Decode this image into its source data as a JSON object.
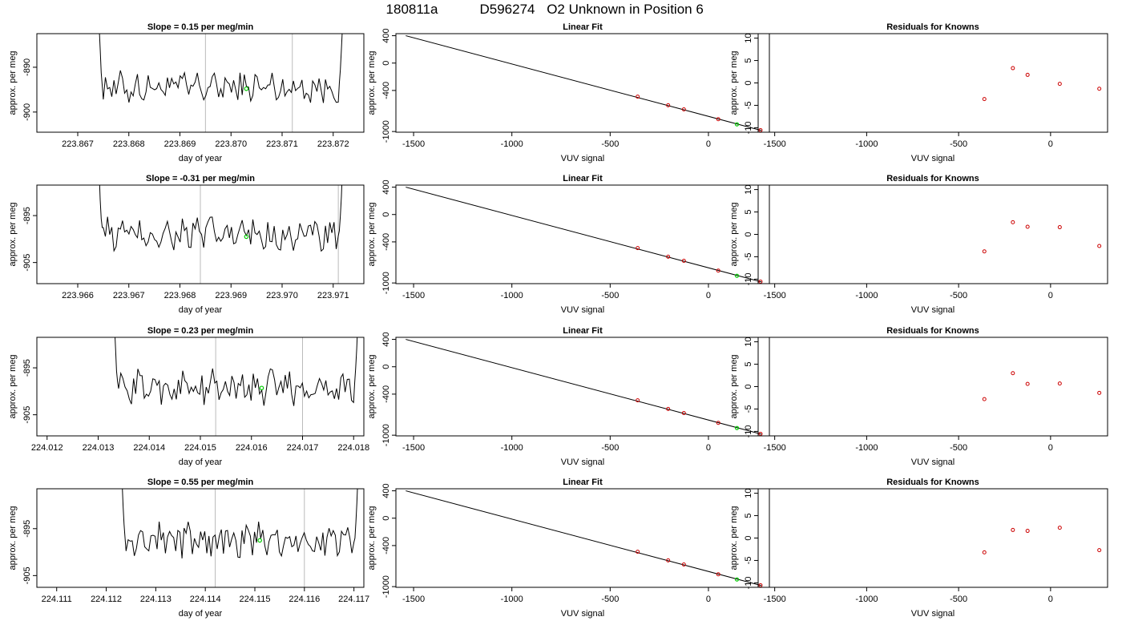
{
  "header": {
    "run_id": "180811a",
    "sample_id": "D596274",
    "description": "O2 Unknown in Position  6"
  },
  "colors": {
    "trace": "#000000",
    "known_point": "#cc0000",
    "unknown_point": "#00cc00",
    "vline": "#bbbbbb",
    "axis": "#000000"
  },
  "chart_data": [
    {
      "type": "line",
      "panel": "time-trace",
      "row": 1,
      "title": "Slope =  0.15  per meg/min",
      "xlabel": "day of year",
      "ylabel": "approx. per meg",
      "xlim": [
        223.8662,
        223.8726
      ],
      "ylim": [
        -904.5,
        -882.5
      ],
      "y_reversed": true,
      "xticks": [
        223.867,
        223.868,
        223.869,
        223.87,
        223.871,
        223.872
      ],
      "xtick_labels": [
        "223.867",
        "223.868",
        "223.869",
        "223.870",
        "223.871",
        "223.872"
      ],
      "yticks": [
        -890,
        -900
      ],
      "ytick_labels": [
        "-890",
        "-900"
      ],
      "vlines": [
        223.8695,
        223.8712
      ],
      "baseline": -894.5,
      "span": [
        223.8675,
        223.8721
      ],
      "segments": 110,
      "highlight_point": {
        "x": 223.8703,
        "y": -894.8
      }
    },
    {
      "type": "scatter",
      "panel": "linear-fit",
      "row": 1,
      "title": "Linear Fit",
      "xlabel": "VUV signal",
      "ylabel": "approx. per meg",
      "xlim": [
        -1590,
        310
      ],
      "ylim": [
        -1010,
        430
      ],
      "xticks": [
        -1500,
        -1000,
        -500,
        0
      ],
      "xtick_labels": [
        "-1500",
        "-1000",
        "-500",
        "0"
      ],
      "yticks": [
        400,
        0,
        -400,
        -1000
      ],
      "ytick_labels": [
        "400",
        "0",
        "-400",
        "-1000"
      ],
      "fit_line": {
        "x": [
          -1540,
          270
        ],
        "y": [
          400,
          -985
        ]
      },
      "knowns": {
        "x": [
          -360,
          -205,
          -125,
          50,
          265
        ],
        "y": [
          -490,
          -616,
          -676,
          -820,
          -980
        ]
      },
      "unknown": {
        "x": 145,
        "y": -895
      }
    },
    {
      "type": "scatter",
      "panel": "residuals",
      "row": 1,
      "title": "Residuals for Knowns",
      "xlabel": "VUV signal",
      "ylabel": "approx. per meg",
      "xlim": [
        -1590,
        310
      ],
      "ylim": [
        -11,
        11
      ],
      "xticks": [
        -1500,
        -1000,
        -500,
        0
      ],
      "xtick_labels": [
        "-1500",
        "-1000",
        "-500",
        "0"
      ],
      "yticks": [
        10,
        5,
        0,
        -5,
        -10
      ],
      "ytick_labels": [
        "10",
        "5",
        "0",
        "-5",
        "-10"
      ],
      "residuals": {
        "x": [
          -360,
          -205,
          -125,
          50,
          265
        ],
        "y": [
          -3.6,
          3.3,
          1.8,
          -0.2,
          -1.3
        ]
      }
    },
    {
      "type": "line",
      "panel": "time-trace",
      "row": 2,
      "title": "Slope =  -0.31  per meg/min",
      "xlabel": "day of year",
      "ylabel": "approx. per meg",
      "xlim": [
        223.9652,
        223.9716
      ],
      "ylim": [
        -909.5,
        -888.5
      ],
      "y_reversed": true,
      "xticks": [
        223.966,
        223.967,
        223.968,
        223.969,
        223.97,
        223.971
      ],
      "xtick_labels": [
        "223.966",
        "223.967",
        "223.968",
        "223.969",
        "223.970",
        "223.971"
      ],
      "yticks": [
        -895,
        -905
      ],
      "ytick_labels": [
        "-895",
        "-905"
      ],
      "vlines": [
        223.9684,
        223.9711
      ],
      "baseline": -899.0,
      "span": [
        223.9665,
        223.9711
      ],
      "segments": 110,
      "highlight_point": {
        "x": 223.9693,
        "y": -899.5
      }
    },
    {
      "type": "scatter",
      "panel": "linear-fit",
      "row": 2,
      "title": "Linear Fit",
      "xlabel": "VUV signal",
      "ylabel": "approx. per meg",
      "xlim": [
        -1590,
        310
      ],
      "ylim": [
        -1010,
        430
      ],
      "xticks": [
        -1500,
        -1000,
        -500,
        0
      ],
      "xtick_labels": [
        "-1500",
        "-1000",
        "-500",
        "0"
      ],
      "yticks": [
        400,
        0,
        -400,
        -1000
      ],
      "ytick_labels": [
        "400",
        "0",
        "-400",
        "-1000"
      ],
      "fit_line": {
        "x": [
          -1540,
          270
        ],
        "y": [
          400,
          -985
        ]
      },
      "knowns": {
        "x": [
          -360,
          -205,
          -125,
          50,
          265
        ],
        "y": [
          -490,
          -616,
          -676,
          -820,
          -980
        ]
      },
      "unknown": {
        "x": 145,
        "y": -895
      }
    },
    {
      "type": "scatter",
      "panel": "residuals",
      "row": 2,
      "title": "Residuals for Knowns",
      "xlabel": "VUV signal",
      "ylabel": "approx. per meg",
      "xlim": [
        -1590,
        310
      ],
      "ylim": [
        -11,
        11
      ],
      "xticks": [
        -1500,
        -1000,
        -500,
        0
      ],
      "xtick_labels": [
        "-1500",
        "-1000",
        "-500",
        "0"
      ],
      "yticks": [
        10,
        5,
        0,
        -5,
        -10
      ],
      "ytick_labels": [
        "10",
        "5",
        "0",
        "-5",
        "-10"
      ],
      "residuals": {
        "x": [
          -360,
          -205,
          -125,
          50,
          265
        ],
        "y": [
          -3.8,
          2.7,
          1.7,
          1.6,
          -2.6
        ]
      }
    },
    {
      "type": "line",
      "panel": "time-trace",
      "row": 3,
      "title": "Slope =  0.23  per meg/min",
      "xlabel": "day of year",
      "ylabel": "approx. per meg",
      "xlim": [
        224.0118,
        224.0182
      ],
      "ylim": [
        -909.5,
        -888.5
      ],
      "y_reversed": true,
      "xticks": [
        224.012,
        224.013,
        224.014,
        224.015,
        224.016,
        224.017,
        224.018
      ],
      "xtick_labels": [
        "224.012",
        "224.013",
        "224.014",
        "224.015",
        "224.016",
        "224.017",
        "224.018"
      ],
      "yticks": [
        -895,
        -905
      ],
      "ytick_labels": [
        "-895",
        "-905"
      ],
      "vlines": [
        224.0153,
        224.017
      ],
      "baseline": -899.0,
      "span": [
        224.0134,
        224.018
      ],
      "segments": 110,
      "highlight_point": {
        "x": 224.0162,
        "y": -899.3
      }
    },
    {
      "type": "scatter",
      "panel": "linear-fit",
      "row": 3,
      "title": "Linear Fit",
      "xlabel": "VUV signal",
      "ylabel": "approx. per meg",
      "xlim": [
        -1590,
        310
      ],
      "ylim": [
        -1010,
        430
      ],
      "xticks": [
        -1500,
        -1000,
        -500,
        0
      ],
      "xtick_labels": [
        "-1500",
        "-1000",
        "-500",
        "0"
      ],
      "yticks": [
        400,
        0,
        -400,
        -1000
      ],
      "ytick_labels": [
        "400",
        "0",
        "-400",
        "-1000"
      ],
      "fit_line": {
        "x": [
          -1540,
          270
        ],
        "y": [
          400,
          -985
        ]
      },
      "knowns": {
        "x": [
          -360,
          -205,
          -125,
          50,
          265
        ],
        "y": [
          -490,
          -616,
          -676,
          -820,
          -980
        ]
      },
      "unknown": {
        "x": 145,
        "y": -895
      }
    },
    {
      "type": "scatter",
      "panel": "residuals",
      "row": 3,
      "title": "Residuals for Knowns",
      "xlabel": "VUV signal",
      "ylabel": "approx. per meg",
      "xlim": [
        -1590,
        310
      ],
      "ylim": [
        -11,
        11
      ],
      "xticks": [
        -1500,
        -1000,
        -500,
        0
      ],
      "xtick_labels": [
        "-1500",
        "-1000",
        "-500",
        "0"
      ],
      "yticks": [
        10,
        5,
        0,
        -5,
        -10
      ],
      "ytick_labels": [
        "10",
        "5",
        "0",
        "-5",
        "-10"
      ],
      "residuals": {
        "x": [
          -360,
          -205,
          -125,
          50,
          265
        ],
        "y": [
          -2.8,
          3.0,
          0.6,
          0.7,
          -1.4
        ]
      }
    },
    {
      "type": "line",
      "panel": "time-trace",
      "row": 4,
      "title": "Slope =  0.55  per meg/min",
      "xlabel": "day of year",
      "ylabel": "approx. per meg",
      "xlim": [
        224.1106,
        224.1172
      ],
      "ylim": [
        -907.5,
        -886.5
      ],
      "y_reversed": true,
      "xticks": [
        224.111,
        224.112,
        224.113,
        224.114,
        224.115,
        224.116,
        224.117
      ],
      "xtick_labels": [
        "224.111",
        "224.112",
        "224.113",
        "224.114",
        "224.115",
        "224.116",
        "224.117"
      ],
      "yticks": [
        -895,
        -905
      ],
      "ytick_labels": [
        "-895",
        "-905"
      ],
      "vlines": [
        224.1142,
        224.116
      ],
      "baseline": -897.5,
      "span": [
        224.1124,
        224.117
      ],
      "segments": 110,
      "highlight_point": {
        "x": 224.1151,
        "y": -897.5
      }
    },
    {
      "type": "scatter",
      "panel": "linear-fit",
      "row": 4,
      "title": "Linear Fit",
      "xlabel": "VUV signal",
      "ylabel": "approx. per meg",
      "xlim": [
        -1590,
        310
      ],
      "ylim": [
        -1010,
        430
      ],
      "xticks": [
        -1500,
        -1000,
        -500,
        0
      ],
      "xtick_labels": [
        "-1500",
        "-1000",
        "-500",
        "0"
      ],
      "yticks": [
        400,
        0,
        -400,
        -1000
      ],
      "ytick_labels": [
        "400",
        "0",
        "-400",
        "-1000"
      ],
      "fit_line": {
        "x": [
          -1540,
          270
        ],
        "y": [
          400,
          -985
        ]
      },
      "knowns": {
        "x": [
          -360,
          -205,
          -125,
          50,
          265
        ],
        "y": [
          -490,
          -616,
          -676,
          -820,
          -980
        ]
      },
      "unknown": {
        "x": 145,
        "y": -895
      }
    },
    {
      "type": "scatter",
      "panel": "residuals",
      "row": 4,
      "title": "Residuals for Knowns",
      "xlabel": "VUV signal",
      "ylabel": "approx. per meg",
      "xlim": [
        -1590,
        310
      ],
      "ylim": [
        -11,
        11
      ],
      "xticks": [
        -1500,
        -1000,
        -500,
        0
      ],
      "xtick_labels": [
        "-1500",
        "-1000",
        "-500",
        "0"
      ],
      "yticks": [
        10,
        5,
        0,
        -5,
        -10
      ],
      "ytick_labels": [
        "10",
        "5",
        "0",
        "-5",
        "-10"
      ],
      "residuals": {
        "x": [
          -360,
          -205,
          -125,
          50,
          265
        ],
        "y": [
          -3.2,
          1.8,
          1.6,
          2.3,
          -2.7
        ]
      }
    }
  ]
}
